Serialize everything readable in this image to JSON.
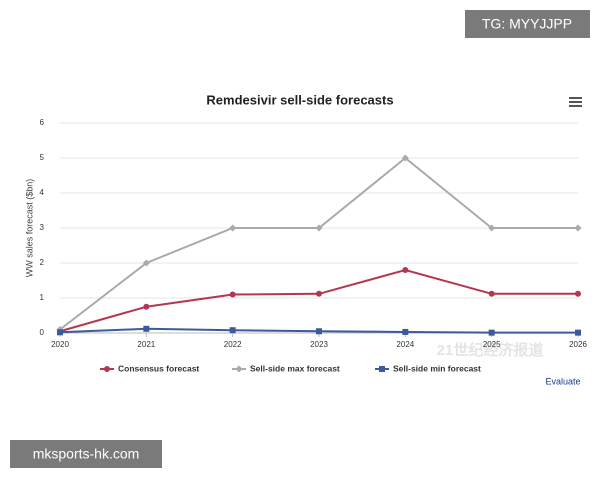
{
  "chart_data": {
    "type": "line",
    "title": "Remdesivir sell-side forecasts",
    "y_label": "WW sales forecast ($bn)",
    "x": [
      2020,
      2021,
      2022,
      2023,
      2024,
      2025,
      2026
    ],
    "xlim": [
      2020,
      2026
    ],
    "xticks": [
      2020,
      2021,
      2022,
      2023,
      2024,
      2025,
      2026
    ],
    "ylim": [
      0,
      6
    ],
    "yticks": [
      0,
      1,
      2,
      3,
      4,
      5,
      6
    ],
    "grid": true,
    "series": [
      {
        "name": "Consensus forecast",
        "color": "#b5364f",
        "marker": "circle",
        "values": [
          0.05,
          0.75,
          1.1,
          1.12,
          1.8,
          1.12,
          1.12
        ]
      },
      {
        "name": "Sell-side max forecast",
        "color": "#aaaaaa",
        "marker": "diamond",
        "values": [
          0.1,
          2.0,
          3.0,
          3.0,
          5.0,
          3.0,
          3.0
        ]
      },
      {
        "name": "Sell-side min forecast",
        "color": "#3d5a99",
        "marker": "square",
        "values": [
          0.02,
          0.12,
          0.08,
          0.05,
          0.03,
          0.01,
          0.01
        ]
      }
    ]
  },
  "source": "Evaluate",
  "watermarks": [
    "TG: MYYJJPP",
    "mksports-hk.com",
    "21世纪经济报道"
  ]
}
